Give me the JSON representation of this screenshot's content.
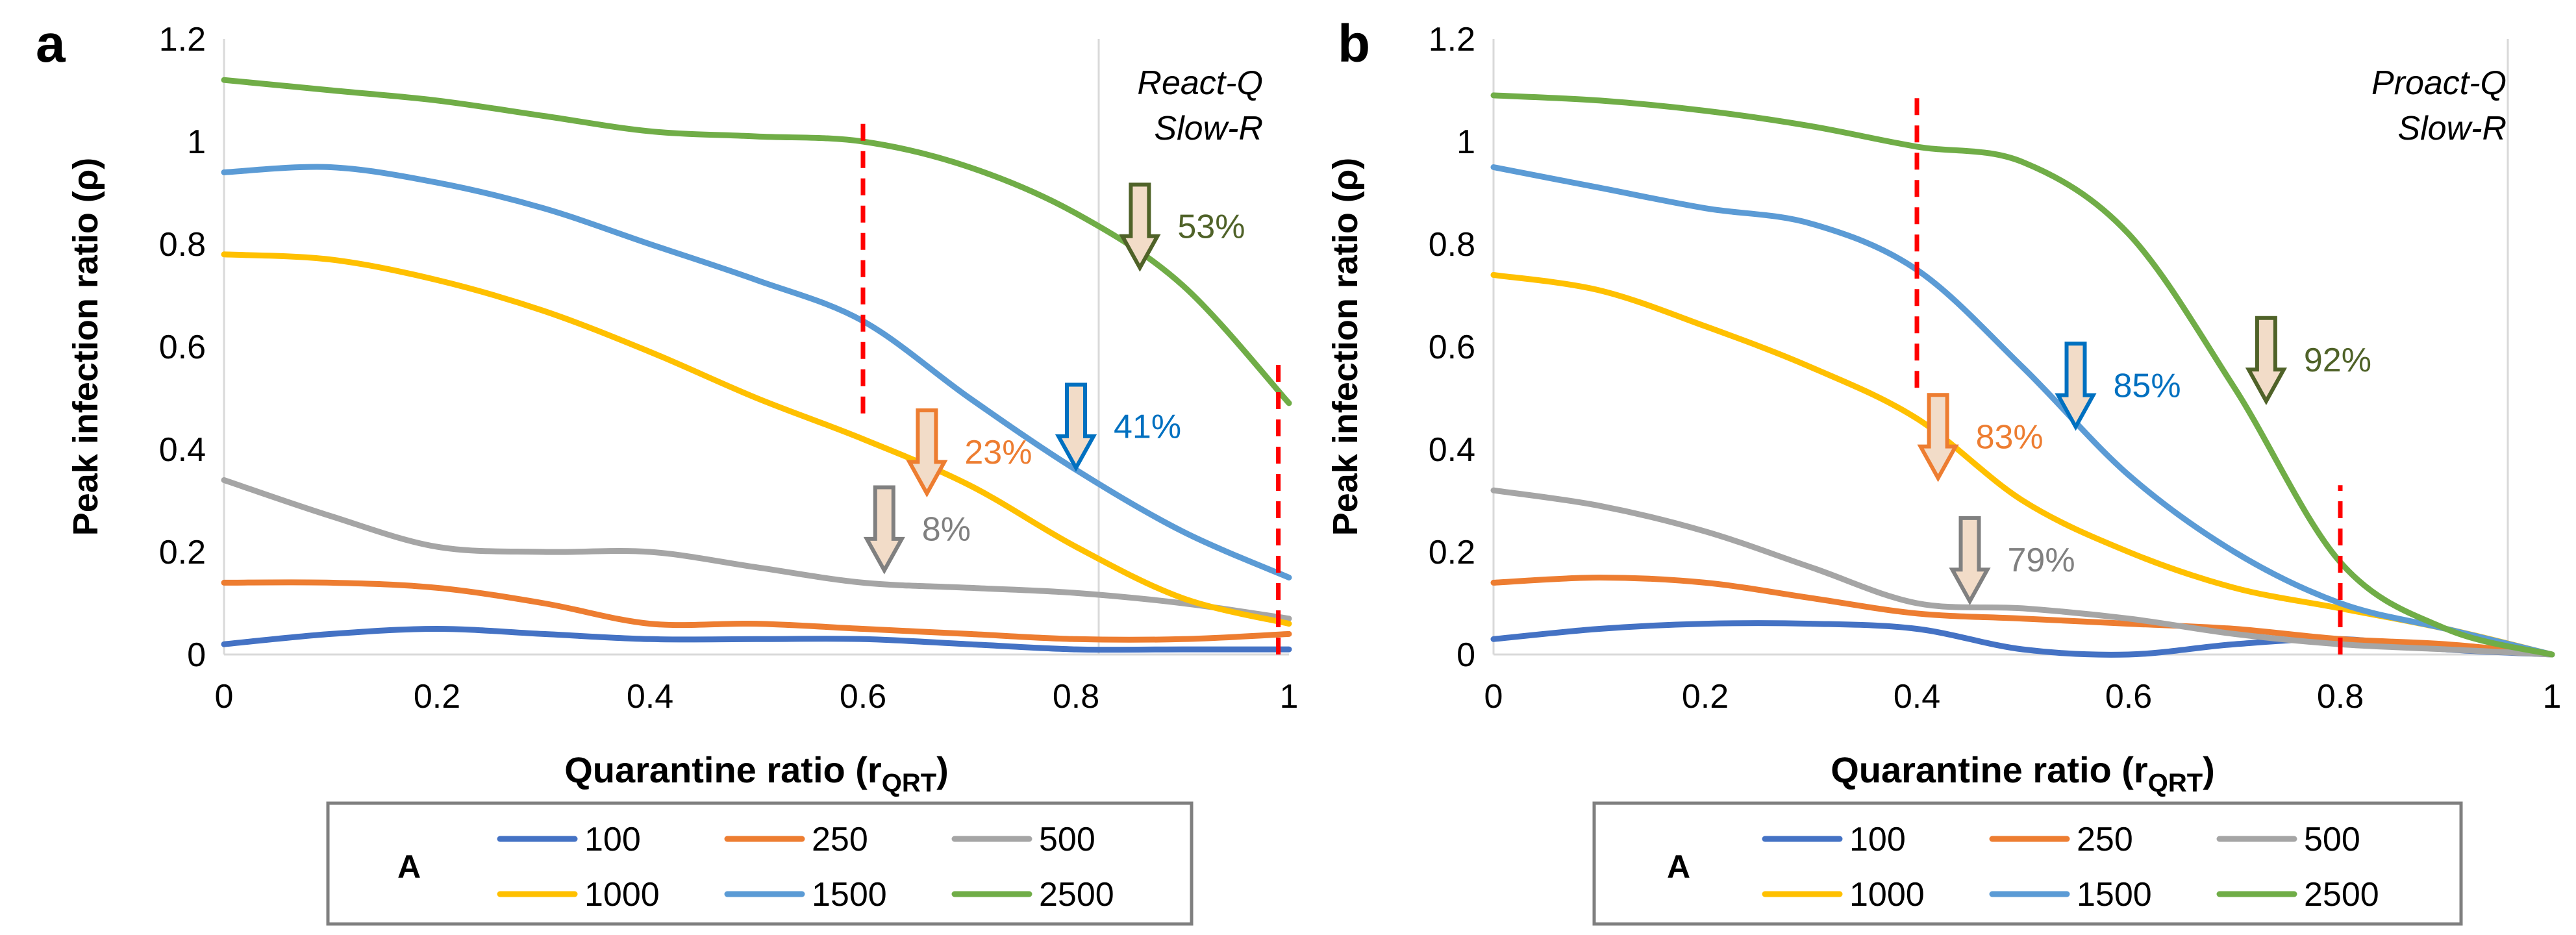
{
  "figure": {
    "panels": [
      {
        "label": "a",
        "annotation_lines": [
          "React-Q",
          "Slow-R"
        ]
      },
      {
        "label": "b",
        "annotation_lines": [
          "Proact-Q",
          "Slow-R"
        ]
      }
    ],
    "legend": {
      "title": "A",
      "entries": [
        {
          "name": "100",
          "color": "#4472c4"
        },
        {
          "name": "250",
          "color": "#ed7d31"
        },
        {
          "name": "500",
          "color": "#a5a5a5"
        },
        {
          "name": "1000",
          "color": "#ffc000"
        },
        {
          "name": "1500",
          "color": "#5b9bd5"
        },
        {
          "name": "2500",
          "color": "#70ad47"
        }
      ]
    }
  },
  "chart_data": [
    {
      "type": "line",
      "title": "",
      "xlabel": "Quarantine ratio (rQRT)",
      "xlabel_main": "Quarantine ratio (r",
      "xlabel_sub": "QRT",
      "xlabel_end": ")",
      "ylabel": "Peak infection ratio (ρ)",
      "xlim": [
        0,
        1
      ],
      "ylim": [
        0,
        1.2
      ],
      "xticks": [
        0,
        0.2,
        0.4,
        0.6,
        0.8,
        1
      ],
      "xtick_labels": [
        "0",
        "0.2",
        "0.4",
        "0.6",
        "0.8",
        "1"
      ],
      "yticks": [
        0,
        0.2,
        0.4,
        0.6,
        0.8,
        1,
        1.2
      ],
      "ytick_labels": [
        "0",
        "0.2",
        "0.4",
        "0.6",
        "0.8",
        "1",
        "1.2"
      ],
      "series": [
        {
          "name": "100",
          "color": "#4472c4",
          "x": [
            0,
            0.1,
            0.2,
            0.3,
            0.4,
            0.5,
            0.6,
            0.7,
            0.8,
            0.9,
            1.0
          ],
          "y": [
            0.02,
            0.04,
            0.05,
            0.04,
            0.03,
            0.03,
            0.03,
            0.02,
            0.01,
            0.01,
            0.01
          ]
        },
        {
          "name": "250",
          "color": "#ed7d31",
          "x": [
            0,
            0.1,
            0.2,
            0.3,
            0.4,
            0.5,
            0.6,
            0.7,
            0.8,
            0.9,
            1.0
          ],
          "y": [
            0.14,
            0.14,
            0.13,
            0.1,
            0.06,
            0.06,
            0.05,
            0.04,
            0.03,
            0.03,
            0.04
          ]
        },
        {
          "name": "500",
          "color": "#a5a5a5",
          "x": [
            0,
            0.1,
            0.2,
            0.3,
            0.4,
            0.5,
            0.6,
            0.7,
            0.8,
            0.9,
            1.0
          ],
          "y": [
            0.34,
            0.27,
            0.21,
            0.2,
            0.2,
            0.17,
            0.14,
            0.13,
            0.12,
            0.1,
            0.07
          ]
        },
        {
          "name": "1000",
          "color": "#ffc000",
          "x": [
            0,
            0.1,
            0.2,
            0.3,
            0.4,
            0.5,
            0.6,
            0.7,
            0.8,
            0.9,
            1.0
          ],
          "y": [
            0.78,
            0.77,
            0.73,
            0.67,
            0.59,
            0.5,
            0.42,
            0.33,
            0.21,
            0.11,
            0.06
          ]
        },
        {
          "name": "1500",
          "color": "#5b9bd5",
          "x": [
            0,
            0.1,
            0.2,
            0.3,
            0.4,
            0.5,
            0.6,
            0.7,
            0.8,
            0.9,
            1.0
          ],
          "y": [
            0.94,
            0.95,
            0.92,
            0.87,
            0.8,
            0.73,
            0.65,
            0.5,
            0.36,
            0.24,
            0.15
          ]
        },
        {
          "name": "2500",
          "color": "#70ad47",
          "x": [
            0,
            0.1,
            0.2,
            0.3,
            0.4,
            0.5,
            0.6,
            0.7,
            0.8,
            0.9,
            1.0
          ],
          "y": [
            1.12,
            1.1,
            1.08,
            1.05,
            1.02,
            1.01,
            1.0,
            0.95,
            0.86,
            0.72,
            0.49
          ]
        }
      ],
      "reference_lines": [
        {
          "x": 0.6,
          "y_from": 0.47,
          "y_to": 1.04,
          "color": "#ff0000"
        },
        {
          "x": 0.99,
          "y_from": 0.0,
          "y_to": 0.58,
          "color": "#ff0000"
        }
      ],
      "annotations": [
        {
          "text": "53%",
          "x": 0.86,
          "y": 0.84,
          "color": "#4f6228"
        },
        {
          "text": "41%",
          "x": 0.8,
          "y": 0.45,
          "color": "#0070c0"
        },
        {
          "text": "23%",
          "x": 0.66,
          "y": 0.4,
          "color": "#ed7d31"
        },
        {
          "text": "8%",
          "x": 0.62,
          "y": 0.25,
          "color": "#808080"
        }
      ]
    },
    {
      "type": "line",
      "title": "",
      "xlabel": "Quarantine ratio (rQRT)",
      "xlabel_main": "Quarantine ratio (r",
      "xlabel_sub": "QRT",
      "xlabel_end": ")",
      "ylabel": "Peak infection ratio (ρ)",
      "xlim": [
        0,
        1
      ],
      "ylim": [
        0,
        1.2
      ],
      "xticks": [
        0,
        0.2,
        0.4,
        0.6,
        0.8,
        1
      ],
      "xtick_labels": [
        "0",
        "0.2",
        "0.4",
        "0.6",
        "0.8",
        "1"
      ],
      "yticks": [
        0,
        0.2,
        0.4,
        0.6,
        0.8,
        1,
        1.2
      ],
      "ytick_labels": [
        "0",
        "0.2",
        "0.4",
        "0.6",
        "0.8",
        "1",
        "1.2"
      ],
      "series": [
        {
          "name": "100",
          "color": "#4472c4",
          "x": [
            0,
            0.1,
            0.2,
            0.3,
            0.4,
            0.5,
            0.6,
            0.7,
            0.8,
            0.9,
            1.0
          ],
          "y": [
            0.03,
            0.05,
            0.06,
            0.06,
            0.05,
            0.01,
            0.0,
            0.02,
            0.03,
            0.01,
            0.0
          ]
        },
        {
          "name": "250",
          "color": "#ed7d31",
          "x": [
            0,
            0.1,
            0.2,
            0.3,
            0.4,
            0.5,
            0.6,
            0.7,
            0.8,
            0.9,
            1.0
          ],
          "y": [
            0.14,
            0.15,
            0.14,
            0.11,
            0.08,
            0.07,
            0.06,
            0.05,
            0.03,
            0.02,
            0.0
          ]
        },
        {
          "name": "500",
          "color": "#a5a5a5",
          "x": [
            0,
            0.1,
            0.2,
            0.3,
            0.4,
            0.5,
            0.6,
            0.7,
            0.8,
            0.9,
            1.0
          ],
          "y": [
            0.32,
            0.29,
            0.24,
            0.17,
            0.1,
            0.09,
            0.07,
            0.04,
            0.02,
            0.01,
            0.0
          ]
        },
        {
          "name": "1000",
          "color": "#ffc000",
          "x": [
            0,
            0.1,
            0.2,
            0.3,
            0.4,
            0.5,
            0.6,
            0.7,
            0.8,
            0.9,
            1.0
          ],
          "y": [
            0.74,
            0.71,
            0.64,
            0.56,
            0.46,
            0.3,
            0.2,
            0.13,
            0.09,
            0.05,
            0.0
          ]
        },
        {
          "name": "1500",
          "color": "#5b9bd5",
          "x": [
            0,
            0.1,
            0.2,
            0.3,
            0.4,
            0.5,
            0.6,
            0.7,
            0.8,
            0.9,
            1.0
          ],
          "y": [
            0.95,
            0.91,
            0.87,
            0.84,
            0.75,
            0.56,
            0.35,
            0.2,
            0.1,
            0.05,
            0.0
          ]
        },
        {
          "name": "2500",
          "color": "#70ad47",
          "x": [
            0,
            0.1,
            0.2,
            0.3,
            0.4,
            0.5,
            0.6,
            0.7,
            0.8,
            0.9,
            1.0
          ],
          "y": [
            1.09,
            1.08,
            1.06,
            1.03,
            0.99,
            0.96,
            0.82,
            0.52,
            0.18,
            0.05,
            0.0
          ]
        }
      ],
      "reference_lines": [
        {
          "x": 0.4,
          "y_from": 0.52,
          "y_to": 1.1,
          "color": "#ff0000"
        },
        {
          "x": 0.8,
          "y_from": 0.0,
          "y_to": 0.33,
          "color": "#ff0000"
        }
      ],
      "annotations": [
        {
          "text": "92%",
          "x": 0.73,
          "y": 0.58,
          "color": "#4f6228"
        },
        {
          "text": "85%",
          "x": 0.55,
          "y": 0.53,
          "color": "#0070c0"
        },
        {
          "text": "83%",
          "x": 0.42,
          "y": 0.43,
          "color": "#ed7d31"
        },
        {
          "text": "79%",
          "x": 0.45,
          "y": 0.19,
          "color": "#808080"
        }
      ]
    }
  ]
}
